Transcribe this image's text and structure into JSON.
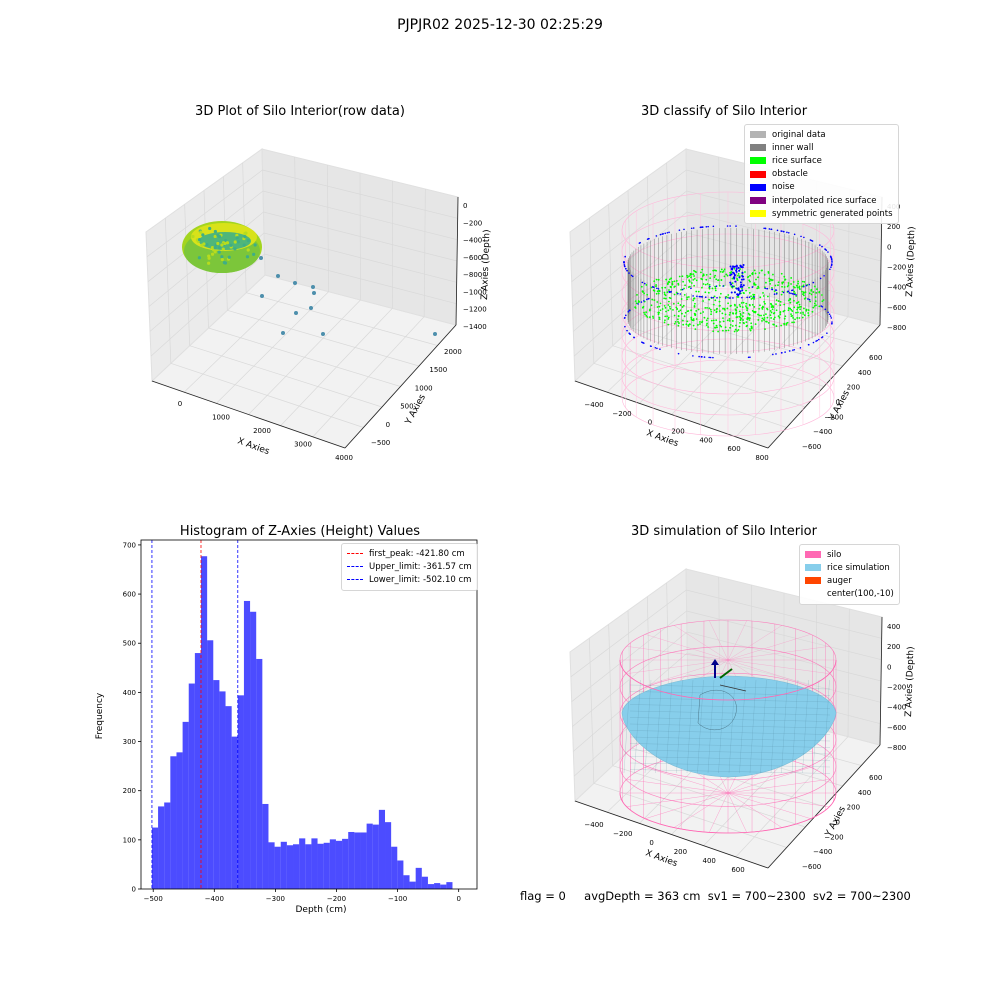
{
  "figure": {
    "suptitle": "PJPJR02 2025-12-30 02:25:29",
    "status": {
      "flag": "flag = 0",
      "avg_depth": "avgDepth = 363 cm",
      "sv1": "sv1 = 700~2300",
      "sv2": "sv2 = 700~2300"
    }
  },
  "colors": {
    "original_data": "#b3b3b3",
    "inner_wall": "#808080",
    "rice_surface": "#00ff00",
    "obstacle": "#ff0000",
    "noise": "#0000ff",
    "interpolated_rice_surface": "#800080",
    "symmetric_generated_points": "#ffff00",
    "silo": "#ff69b4",
    "rice_simulation": "#87ceeb",
    "auger": "#ff4500",
    "hist_bar": "#0000ff",
    "first_peak": "#ff0000",
    "limits": "#0000ff"
  },
  "panels": {
    "raw": {
      "title": "3D Plot of Silo Interior(row data)",
      "xlabel": "X Axies",
      "ylabel": "Y Axies",
      "zlabel": "Z Axies (Depth)",
      "x_ticks": [
        "0",
        "1000",
        "2000",
        "3000",
        "4000"
      ],
      "y_ticks": [
        "−500",
        "0",
        "500",
        "1000",
        "1500",
        "2000"
      ],
      "z_ticks": [
        "0",
        "−200",
        "−400",
        "−600",
        "−800",
        "−1000",
        "−1200",
        "−1400"
      ]
    },
    "classify": {
      "title": "3D classify of Silo Interior",
      "xlabel": "X Axies",
      "ylabel": "Y Axies",
      "zlabel": "Z Axies (Depth)",
      "x_ticks": [
        "−400",
        "−200",
        "0",
        "200",
        "400",
        "600",
        "800"
      ],
      "y_ticks": [
        "−600",
        "−400",
        "−200",
        "0",
        "200",
        "400",
        "600"
      ],
      "z_ticks": [
        "400",
        "200",
        "0",
        "−200",
        "−400",
        "−600",
        "−800"
      ],
      "legend": [
        {
          "label": "original data",
          "color": "#b3b3b3"
        },
        {
          "label": "inner wall",
          "color": "#808080"
        },
        {
          "label": "rice surface",
          "color": "#00ff00"
        },
        {
          "label": "obstacle",
          "color": "#ff0000"
        },
        {
          "label": "noise",
          "color": "#0000ff"
        },
        {
          "label": "interpolated rice surface",
          "color": "#800080"
        },
        {
          "label": "symmetric generated points",
          "color": "#ffff00"
        }
      ]
    },
    "simulation": {
      "title": "3D simulation of Silo Interior",
      "xlabel": "X Axies",
      "ylabel": "Y Axies",
      "zlabel": "Z Axies (Depth)",
      "x_ticks": [
        "−400",
        "−200",
        "0",
        "200",
        "400",
        "600"
      ],
      "y_ticks": [
        "−600",
        "−400",
        "−200",
        "0",
        "200",
        "400",
        "600"
      ],
      "z_ticks": [
        "400",
        "200",
        "0",
        "−200",
        "−400",
        "−600",
        "−800"
      ],
      "legend": [
        {
          "label": "silo",
          "color": "#ff69b4"
        },
        {
          "label": "rice simulation",
          "color": "#87ceeb"
        },
        {
          "label": "auger",
          "color": "#ff4500"
        },
        {
          "label": "center(100,-10)",
          "color": ""
        }
      ]
    }
  },
  "chart_data": {
    "type": "bar",
    "title": "Histogram of Z-Axies (Height) Values",
    "xlabel": "Depth (cm)",
    "ylabel": "Frequency",
    "xlim": [
      -520,
      30
    ],
    "ylim": [
      0,
      710
    ],
    "x_ticks": [
      -500,
      -400,
      -300,
      -200,
      -100,
      0
    ],
    "x_tick_labels": [
      "−500",
      "−400",
      "−300",
      "−200",
      "−100",
      "0"
    ],
    "y_ticks": [
      0,
      100,
      200,
      300,
      400,
      500,
      600,
      700
    ],
    "bin_start": -502.1,
    "bin_width": 10.04,
    "values": [
      125,
      168,
      176,
      270,
      278,
      340,
      418,
      480,
      677,
      506,
      425,
      402,
      372,
      310,
      394,
      586,
      564,
      468,
      173,
      95,
      86,
      96,
      89,
      91,
      103,
      91,
      103,
      92,
      94,
      101,
      98,
      102,
      116,
      115,
      115,
      133,
      131,
      161,
      136,
      86,
      58,
      28,
      15,
      43,
      25,
      10,
      12,
      9,
      14
    ],
    "legend_position": "top-right",
    "lines": [
      {
        "name": "first_peak: -421.80 cm",
        "x": -421.8,
        "color": "#ff0000"
      },
      {
        "name": "Upper_limit: -361.57 cm",
        "x": -361.57,
        "color": "#0000ff"
      },
      {
        "name": "Lower_limit: -502.10 cm",
        "x": -502.1,
        "color": "#0000ff"
      }
    ]
  }
}
